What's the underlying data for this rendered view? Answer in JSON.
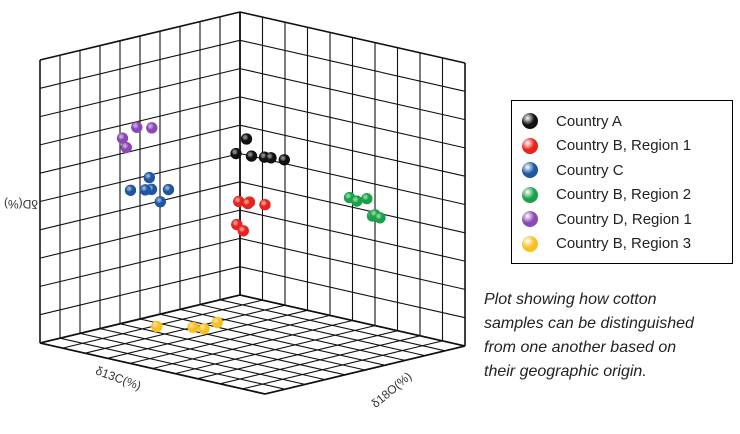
{
  "chart_data": {
    "type": "scatter",
    "projection": "3d",
    "grid": true,
    "legend_placement": "right",
    "xlabel": "δ13C(%)",
    "ylabel": "δ18O(%)",
    "zlabel": "δD(%)",
    "series": [
      {
        "name": "Country A",
        "color": "#111111",
        "points": [
          [
            8.9,
            8.2,
            8.5
          ],
          [
            9.2,
            8.0,
            8.0
          ],
          [
            9.1,
            8.6,
            8.0
          ],
          [
            8.9,
            9.0,
            8.0
          ],
          [
            8.8,
            9.2,
            8.0
          ],
          [
            8.7,
            9.7,
            8.0
          ]
        ]
      },
      {
        "name": "Country B, Region 1",
        "color": "#e8221c",
        "points": [
          [
            7.6,
            6.7,
            5.8
          ],
          [
            7.4,
            7.0,
            5.8
          ],
          [
            7.6,
            7.1,
            5.8
          ],
          [
            7.3,
            7.6,
            5.8
          ],
          [
            7.7,
            6.7,
            5.0
          ],
          [
            7.6,
            6.9,
            4.8
          ]
        ]
      },
      {
        "name": "Country C",
        "color": "#1f56a3",
        "points": [
          [
            6.0,
            1.3,
            5.4
          ],
          [
            6.0,
            1.4,
            5.0
          ],
          [
            6.2,
            1.3,
            5.0
          ],
          [
            5.6,
            1.8,
            5.0
          ],
          [
            5.9,
            1.7,
            4.6
          ],
          [
            6.6,
            1.0,
            5.0
          ]
        ]
      },
      {
        "name": "Country B, Region 2",
        "color": "#1aa148",
        "points": [
          [
            5.1,
            9.4,
            6.0
          ],
          [
            4.8,
            9.9,
            6.0
          ],
          [
            5.3,
            9.9,
            6.0
          ],
          [
            4.4,
            9.8,
            5.3
          ],
          [
            4.5,
            10.0,
            5.4
          ],
          [
            4.7,
            10.4,
            5.4
          ]
        ]
      },
      {
        "name": "Country D, Region 1",
        "color": "#8a49b5",
        "points": [
          [
            9.7,
            3.4,
            7.8
          ],
          [
            9.1,
            3.5,
            8.1
          ],
          [
            8.8,
            3.9,
            8.1
          ],
          [
            9.4,
            3.3,
            7.4
          ]
        ]
      },
      {
        "name": "Country B, Region 3",
        "color": "#f7c121",
        "points": [
          [
            5.4,
            1.1,
            0.0
          ],
          [
            4.6,
            2.0,
            0.0
          ],
          [
            4.5,
            2.4,
            0.0
          ],
          [
            3.5,
            2.1,
            0.0
          ]
        ]
      }
    ]
  },
  "caption_lines": [
    "Plot showing how cotton",
    "samples can be distinguished",
    "from one another based on",
    "their geographic origin."
  ]
}
